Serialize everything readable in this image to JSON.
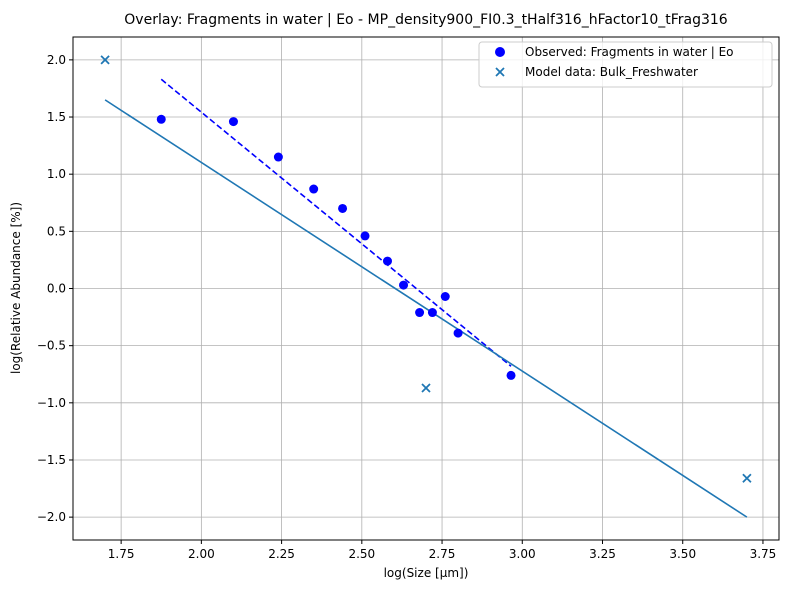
{
  "chart_data": {
    "type": "scatter",
    "title": "Overlay: Fragments in water | Eo - MP_density900_FI0.3_tHalf316_hFactor10_tFrag316",
    "xlabel": "log(Size [µm])",
    "ylabel": "log(Relative Abundance [%])",
    "xlim": [
      1.6,
      3.8
    ],
    "ylim": [
      -2.2,
      2.2
    ],
    "xticks": [
      "1.75",
      "2.00",
      "2.25",
      "2.50",
      "2.75",
      "3.00",
      "3.25",
      "3.50",
      "3.75"
    ],
    "xtick_values": [
      1.75,
      2.0,
      2.25,
      2.5,
      2.75,
      3.0,
      3.25,
      3.5,
      3.75
    ],
    "yticks": [
      "2.0",
      "1.5",
      "1.0",
      "0.5",
      "0.0",
      "−0.5",
      "−1.0",
      "−1.5",
      "−2.0"
    ],
    "ytick_values": [
      2.0,
      1.5,
      1.0,
      0.5,
      0.0,
      -0.5,
      -1.0,
      -1.5,
      -2.0
    ],
    "grid": true,
    "legend_position": "top-right",
    "series": [
      {
        "name": "Observed: Fragments in water | Eo",
        "marker": "circle",
        "color": "#0000ff",
        "points": [
          {
            "x": 1.875,
            "y": 1.48
          },
          {
            "x": 2.1,
            "y": 1.46
          },
          {
            "x": 2.24,
            "y": 1.15
          },
          {
            "x": 2.35,
            "y": 0.87
          },
          {
            "x": 2.44,
            "y": 0.7
          },
          {
            "x": 2.51,
            "y": 0.46
          },
          {
            "x": 2.58,
            "y": 0.24
          },
          {
            "x": 2.63,
            "y": 0.03
          },
          {
            "x": 2.68,
            "y": -0.21
          },
          {
            "x": 2.72,
            "y": -0.21
          },
          {
            "x": 2.76,
            "y": -0.07
          },
          {
            "x": 2.8,
            "y": -0.39
          },
          {
            "x": 2.965,
            "y": -0.76
          }
        ]
      },
      {
        "name": "Model data: Bulk_Freshwater",
        "marker": "x",
        "color": "#1f77b4",
        "points": [
          {
            "x": 1.7,
            "y": 2.0
          },
          {
            "x": 2.7,
            "y": -0.87
          },
          {
            "x": 3.7,
            "y": -1.66
          }
        ]
      }
    ],
    "lines": [
      {
        "style": "dashed",
        "color": "#0000ff",
        "points": [
          {
            "x": 1.875,
            "y": 1.83
          },
          {
            "x": 2.965,
            "y": -0.68
          }
        ]
      },
      {
        "style": "solid",
        "color": "#1f77b4",
        "points": [
          {
            "x": 1.7,
            "y": 1.65
          },
          {
            "x": 3.7,
            "y": -2.0
          }
        ]
      }
    ]
  }
}
